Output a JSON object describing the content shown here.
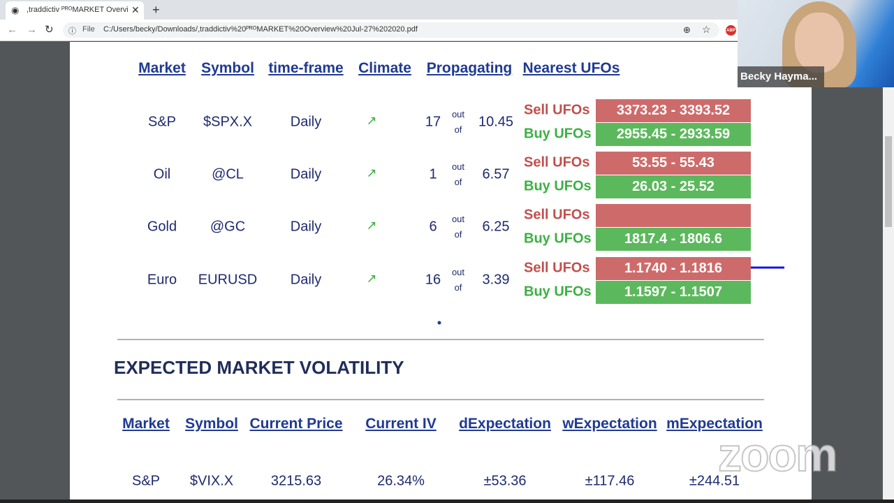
{
  "browser": {
    "tab_title": ",traddictiv ᴾᴿᴼMARKET Overview",
    "address_prefix": "File",
    "url": "C:/Users/becky/Downloads/,traddictiv%20ᴾᴿᴼMARKET%20Overview%20Jul-27%202020.pdf",
    "extension_badge": "ABP"
  },
  "video": {
    "participant": "Becky Hayma...",
    "watermark": "zoom"
  },
  "ufo_table": {
    "headers": [
      "Market",
      "Symbol",
      "time-frame",
      "Climate",
      "Propagating",
      "Nearest UFOs"
    ],
    "rows": [
      {
        "market": "S&P",
        "symbol": "$SPX.X",
        "timeframe": "Daily",
        "climate": "↗",
        "propagating": 17,
        "out_of": "out of",
        "propagating_of": 10.45,
        "sell_label": "Sell UFOs",
        "sell_range": "3373.23 - 3393.52",
        "buy_label": "Buy UFOs",
        "buy_range": "2955.45 - 2933.59"
      },
      {
        "market": "Oil",
        "symbol": "@CL",
        "timeframe": "Daily",
        "climate": "↗",
        "propagating": 1,
        "out_of": "out of",
        "propagating_of": 6.57,
        "sell_label": "Sell UFOs",
        "sell_range": "53.55 - 55.43",
        "buy_label": "Buy UFOs",
        "buy_range": "26.03 - 25.52"
      },
      {
        "market": "Gold",
        "symbol": "@GC",
        "timeframe": "Daily",
        "climate": "↗",
        "propagating": 6,
        "out_of": "out of",
        "propagating_of": 6.25,
        "sell_label": "Sell UFOs",
        "buy_label": "Buy UFOs",
        "buy_range": "1817.4 - 1806.6"
      },
      {
        "market": "Euro",
        "symbol": "EURUSD",
        "timeframe": "Daily",
        "climate": "↗",
        "propagating": 16,
        "out_of": "out of",
        "propagating_of": 3.39,
        "sell_label": "Sell UFOs",
        "sell_range": "1.1740 - 1.1816",
        "buy_label": "Buy UFOs",
        "buy_range": "1.1597 - 1.1507"
      }
    ]
  },
  "volatility": {
    "title": "EXPECTED MARKET VOLATILITY",
    "headers": [
      "Market",
      "Symbol",
      "Current Price",
      "Current IV",
      "dExpectation",
      "wExpectation",
      "mExpectation"
    ],
    "rows": [
      [
        "S&P",
        "$VIX.X",
        "3215.63",
        "26.34%",
        "±53.36",
        "±117.46",
        "±244.51"
      ]
    ]
  }
}
